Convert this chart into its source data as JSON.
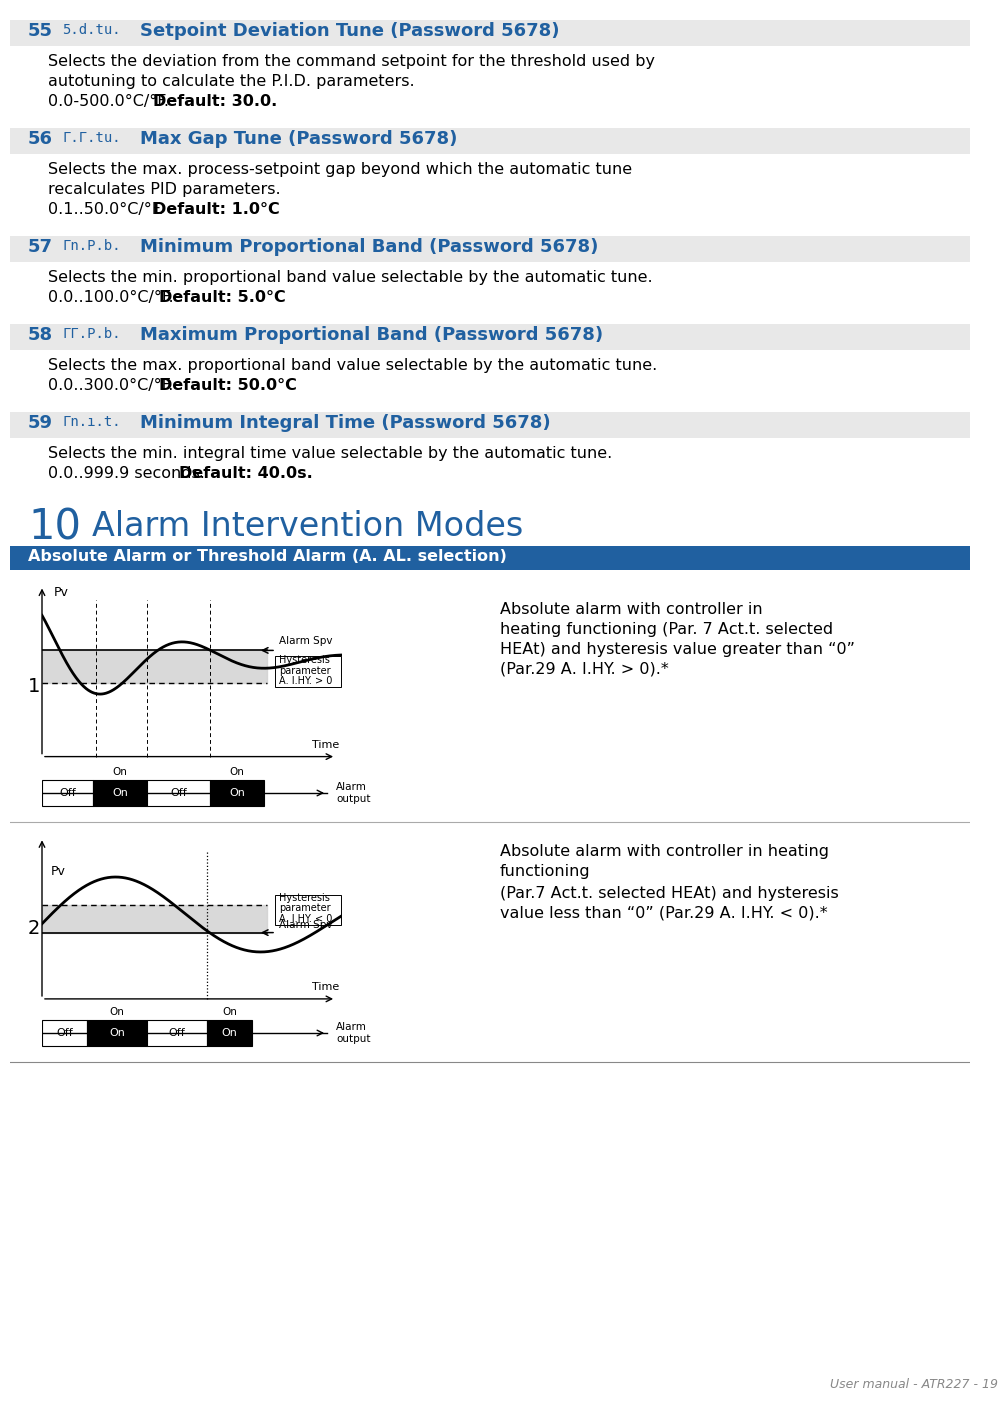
{
  "bg_color": "#ffffff",
  "section_header_bg": "#e8e8e8",
  "blue_color": "#2060a0",
  "text_color": "#000000",
  "sections": [
    {
      "number": "55",
      "code": "5.d.tu.",
      "title": "Setpoint Deviation Tune (Password 5678)",
      "body_lines": [
        "Selects the deviation from the command setpoint for the threshold used by",
        "autotuning to calculate the P.I.D. parameters.",
        "0.0-500.0°C/°F. "
      ],
      "bold_end": "Default: 30.0."
    },
    {
      "number": "56",
      "code": "Г.Γ.tu.",
      "title": "Max Gap Tune (Password 5678)",
      "body_lines": [
        "Selects the max. process-setpoint gap beyond which the automatic tune",
        "recalculates PID parameters.",
        "0.1..50.0°C/°F. "
      ],
      "bold_end": "Default: 1.0°C"
    },
    {
      "number": "57",
      "code": "Гn.P.b.",
      "title": "Minimum Proportional Band (Password 5678)",
      "body_lines": [
        "Selects the min. proportional band value selectable by the automatic tune.",
        "0.0..100.0°C/°F. "
      ],
      "bold_end": "Default: 5.0°C"
    },
    {
      "number": "58",
      "code": "ГГ.P.b.",
      "title": "Maximum Proportional Band (Password 5678)",
      "body_lines": [
        "Selects the max. proportional band value selectable by the automatic tune.",
        "0.0..300.0°C/°F. "
      ],
      "bold_end": "Default: 50.0°C"
    },
    {
      "number": "59",
      "code": "Гn.ı.t.",
      "title": "Minimum Integral Time (Password 5678)",
      "body_lines": [
        "Selects the min. integral time value selectable by the automatic tune.",
        "0.0..999.9 seconds. "
      ],
      "bold_end": "Default: 40.0s."
    }
  ],
  "chapter_number": "10",
  "chapter_title": "Alarm Intervention Modes",
  "chapter_subtitle": "Absolute Alarm or Threshold Alarm (Α. ΑL. selection)",
  "footer_text": "User manual - ATR227 - 19",
  "blue_color_subtitle": "#2060a0"
}
